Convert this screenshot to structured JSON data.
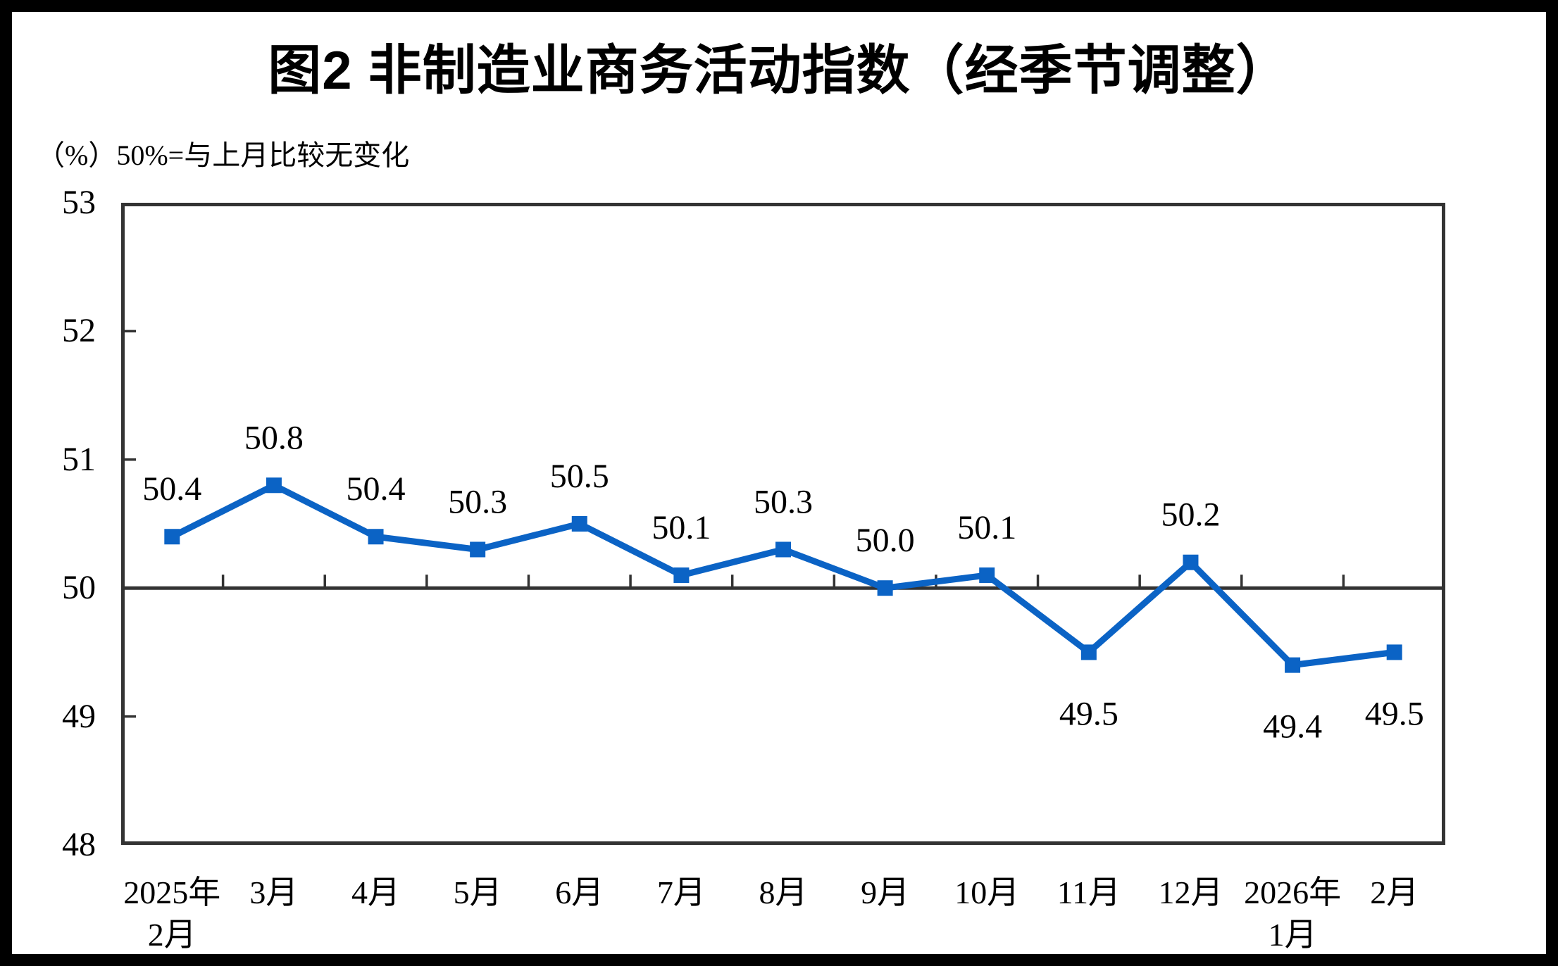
{
  "frame": {
    "border_color": "#000000",
    "background": "#FFFFFF"
  },
  "chart_data": {
    "type": "line",
    "title": "图2 非制造业商务活动指数（经季节调整）",
    "axis_note": "（%）50%=与上月比较无变化",
    "categories": [
      [
        "2025年",
        "2月"
      ],
      [
        "3月"
      ],
      [
        "4月"
      ],
      [
        "5月"
      ],
      [
        "6月"
      ],
      [
        "7月"
      ],
      [
        "8月"
      ],
      [
        "9月"
      ],
      [
        "10月"
      ],
      [
        "11月"
      ],
      [
        "12月"
      ],
      [
        "2026年",
        "1月"
      ],
      [
        "2月"
      ]
    ],
    "values": [
      50.4,
      50.8,
      50.4,
      50.3,
      50.5,
      50.1,
      50.3,
      50.0,
      50.1,
      49.5,
      50.2,
      49.4,
      49.5
    ],
    "data_labels": [
      "50.4",
      "50.8",
      "50.4",
      "50.3",
      "50.5",
      "50.1",
      "50.3",
      "50.0",
      "50.1",
      "49.5",
      "50.2",
      "49.4",
      "49.5"
    ],
    "label_positions": [
      "above",
      "above",
      "above",
      "above",
      "above",
      "above",
      "above",
      "above",
      "above",
      "below",
      "above",
      "below",
      "below"
    ],
    "ylim": [
      48,
      53
    ],
    "y_ticks": [
      53,
      52,
      51,
      50,
      49,
      48
    ],
    "reference_value": 50,
    "grid": false,
    "legend": null,
    "marker_shape": "square",
    "line_color": "#0B63C5",
    "axis_color": "#333333",
    "text_color": "#000000"
  }
}
